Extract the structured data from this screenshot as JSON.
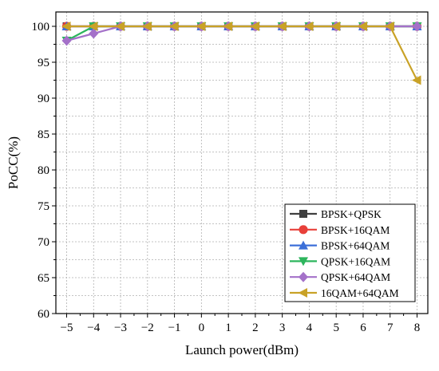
{
  "chart_data": {
    "type": "line",
    "title": "",
    "xlabel": "Launch power(dBm)",
    "ylabel": "PoCC(%)",
    "x": [
      -5,
      -4,
      -3,
      -2,
      -1,
      0,
      1,
      2,
      3,
      4,
      5,
      6,
      7,
      8
    ],
    "x_tick_labels": [
      "−5",
      "−4",
      "−3",
      "−2",
      "−1",
      "0",
      "1",
      "2",
      "3",
      "4",
      "5",
      "6",
      "7",
      "8"
    ],
    "xlim": [
      -5.4,
      8.4
    ],
    "ylim": [
      60,
      102
    ],
    "y_ticks": [
      60,
      65,
      70,
      75,
      80,
      85,
      90,
      95,
      100
    ],
    "y_tick_labels": [
      "60",
      "65",
      "70",
      "75",
      "80",
      "85",
      "90",
      "95",
      "100"
    ],
    "grid": true,
    "legend_position": "bottom-right",
    "series": [
      {
        "name": "BPSK+QPSK",
        "color": "#3f3f3f",
        "marker": "square",
        "values": [
          100,
          100,
          100,
          100,
          100,
          100,
          100,
          100,
          100,
          100,
          100,
          100,
          100,
          100
        ]
      },
      {
        "name": "BPSK+16QAM",
        "color": "#e8403a",
        "marker": "circle",
        "values": [
          100,
          100,
          100,
          100,
          100,
          100,
          100,
          100,
          100,
          100,
          100,
          100,
          100,
          100
        ]
      },
      {
        "name": "BPSK+64QAM",
        "color": "#3c6fd8",
        "marker": "triangle-up",
        "values": [
          100,
          100,
          100,
          100,
          100,
          100,
          100,
          100,
          100,
          100,
          100,
          100,
          100,
          100
        ]
      },
      {
        "name": "QPSK+16QAM",
        "color": "#2db55d",
        "marker": "triangle-down",
        "values": [
          98,
          100,
          100,
          100,
          100,
          100,
          100,
          100,
          100,
          100,
          100,
          100,
          100,
          100
        ]
      },
      {
        "name": "QPSK+64QAM",
        "color": "#a471c9",
        "marker": "diamond",
        "values": [
          98,
          99,
          100,
          100,
          100,
          100,
          100,
          100,
          100,
          100,
          100,
          100,
          100,
          100
        ]
      },
      {
        "name": "16QAM+64QAM",
        "color": "#c9a227",
        "marker": "triangle-left",
        "values": [
          100,
          100,
          100,
          100,
          100,
          100,
          100,
          100,
          100,
          100,
          100,
          100,
          100,
          92.5
        ]
      }
    ]
  }
}
